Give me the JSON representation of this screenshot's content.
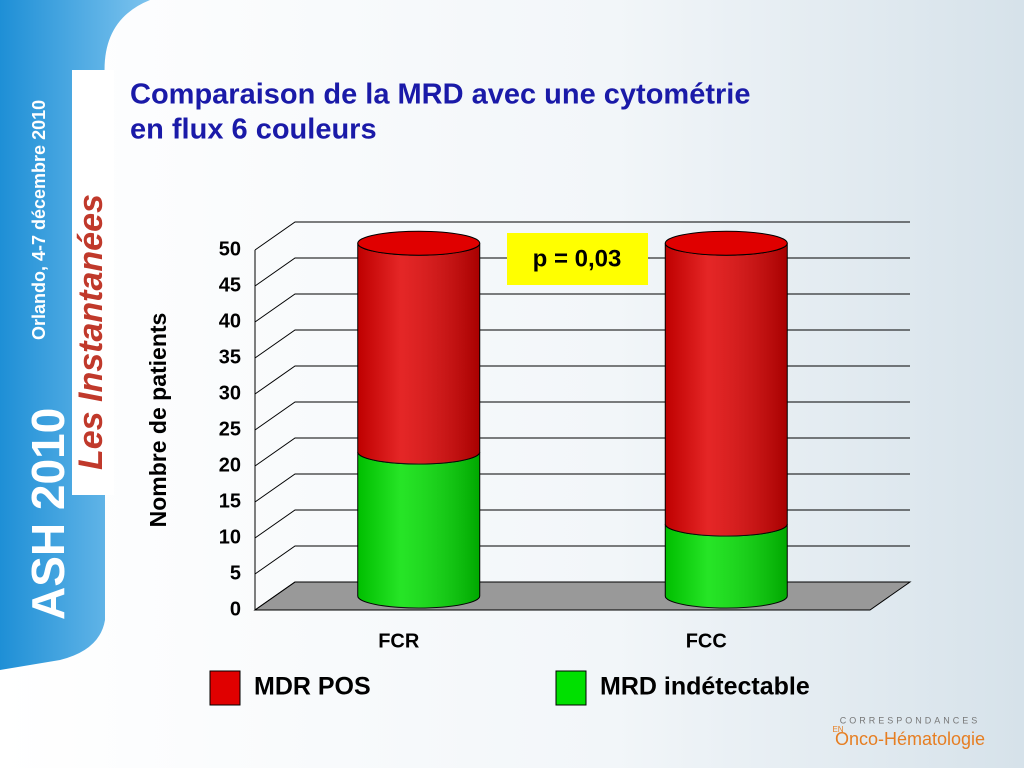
{
  "chart_data": {
    "type": "bar3d-stacked",
    "title": [
      "Comparaison de la MRD avec une cytométrie",
      "en flux 6 couleurs"
    ],
    "y_label": "Nombre de patients",
    "annotation": "p = 0,03",
    "categories": [
      "FCR",
      "FCC"
    ],
    "series": [
      {
        "name": "MRD indétectable",
        "color": "#00e000",
        "values": [
          20,
          10
        ]
      },
      {
        "name": "MDR POS",
        "color": "#e00000",
        "values": [
          29,
          39
        ]
      }
    ],
    "ylim": [
      0,
      50
    ],
    "yticks": [
      0,
      5,
      10,
      15,
      20,
      25,
      30,
      35,
      40,
      45,
      50
    ],
    "grid": true,
    "legend": "bottom"
  },
  "branding": {
    "event": "ASH 2010",
    "place": "Orlando, 4-7 décembre 2010",
    "series_name": "Les Instantanées",
    "logo_top": "CORRESPONDANCES",
    "logo_mid": "EN",
    "logo_main": "Onco-Hématologie"
  }
}
